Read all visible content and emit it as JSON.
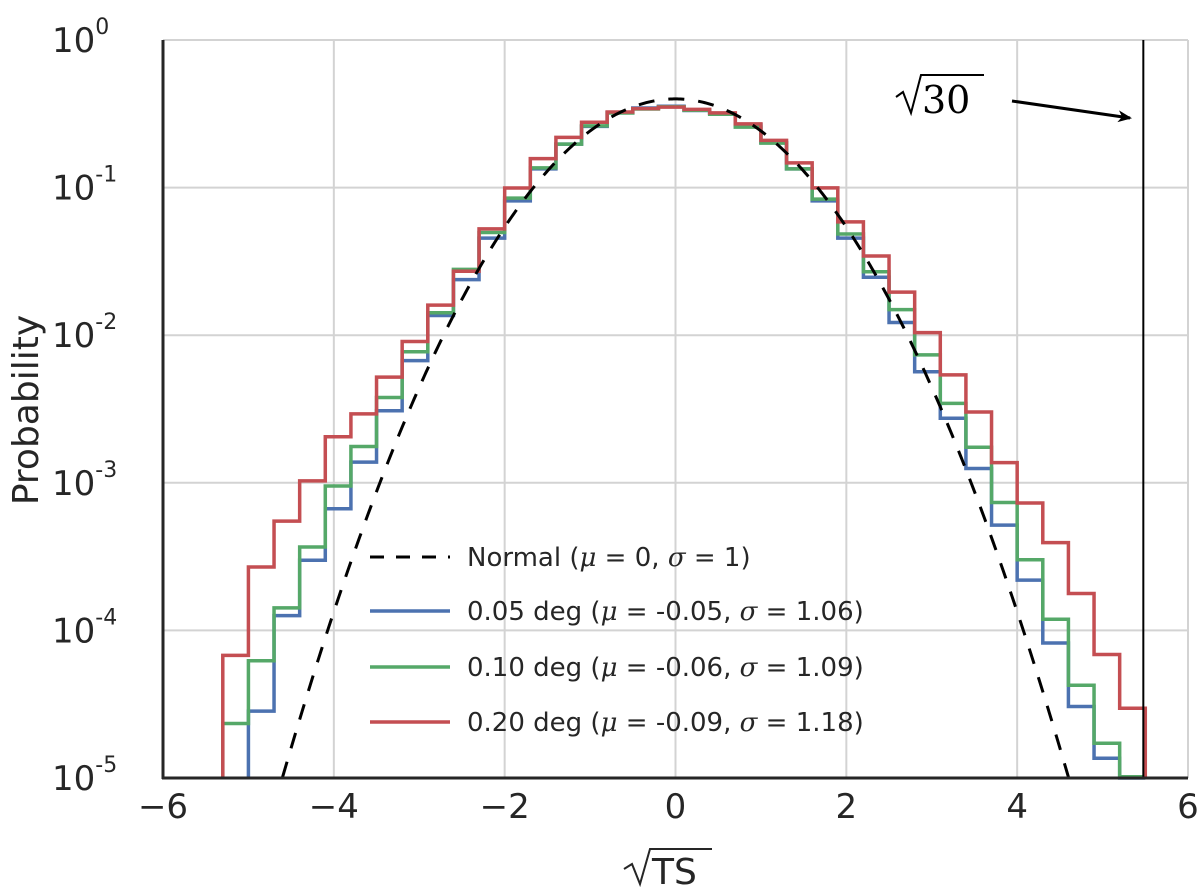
{
  "chart_data": {
    "type": "line",
    "xlabel": "TS",
    "ylabel": "Probability",
    "xlim": [
      -6,
      6
    ],
    "ylim": [
      1e-05,
      1
    ],
    "yscale": "log",
    "grid": true,
    "legend_position": "lower-center",
    "x_ticks": [
      "−6",
      "−4",
      "−2",
      "0",
      "2",
      "4",
      "6"
    ],
    "y_ticks": [
      {
        "base": "10",
        "exp": "0"
      },
      {
        "base": "10",
        "exp": "-1"
      },
      {
        "base": "10",
        "exp": "-2"
      },
      {
        "base": "10",
        "exp": "-3"
      },
      {
        "base": "10",
        "exp": "-4"
      },
      {
        "base": "10",
        "exp": "-5"
      }
    ],
    "bin_edges": [
      -5.3,
      -5.0,
      -4.7,
      -4.4,
      -4.1,
      -3.8,
      -3.5,
      -3.2,
      -2.9,
      -2.6,
      -2.3,
      -2.0,
      -1.7,
      -1.4,
      -1.1,
      -0.8,
      -0.5,
      -0.2,
      0.1,
      0.4,
      0.7,
      1.0,
      1.3,
      1.6,
      1.9,
      2.2,
      2.5,
      2.8,
      3.1,
      3.4,
      3.7,
      4.0,
      4.3,
      4.6,
      4.9,
      5.2,
      5.5
    ],
    "series": [
      {
        "name": "Normal",
        "name_params": [
          "μ",
          "0",
          "σ",
          "1"
        ],
        "style": "dashed",
        "color": "#000000",
        "mu": 0,
        "sigma": 1
      },
      {
        "name": "0.05 deg",
        "name_params": [
          "μ",
          "-0.05",
          "σ",
          "1.06"
        ],
        "style": "step",
        "color": "#4c72b0",
        "values": [
          null,
          2.84e-05,
          0.000126,
          0.000299,
          0.000667,
          0.00138,
          0.00308,
          0.00673,
          0.0136,
          0.0238,
          0.0455,
          0.0813,
          0.134,
          0.197,
          0.26,
          0.323,
          0.346,
          0.356,
          0.333,
          0.319,
          0.266,
          0.202,
          0.134,
          0.0813,
          0.0455,
          0.0247,
          0.0122,
          0.00565,
          0.00274,
          0.00125,
          0.000517,
          0.000219,
          8.22e-05,
          3.05e-05,
          1.36e-05,
          1e-05
        ]
      },
      {
        "name": "0.10 deg",
        "name_params": [
          "μ",
          "-0.06",
          "σ",
          "1.09"
        ],
        "style": "step",
        "color": "#55a868",
        "values": [
          2.34e-05,
          6.23e-05,
          0.000142,
          0.000367,
          0.000952,
          0.00176,
          0.00378,
          0.00773,
          0.0142,
          0.0279,
          0.0496,
          0.0849,
          0.136,
          0.197,
          0.262,
          0.32,
          0.341,
          0.353,
          0.334,
          0.314,
          0.257,
          0.2,
          0.134,
          0.0835,
          0.0485,
          0.0269,
          0.0149,
          0.00735,
          0.00345,
          0.00174,
          0.000735,
          0.000301,
          0.000119,
          4.25e-05,
          1.72e-05,
          1.02e-05
        ]
      },
      {
        "name": "0.20 deg",
        "name_params": [
          "μ",
          "-0.09",
          "σ",
          "1.18"
        ],
        "style": "step",
        "color": "#c44e52",
        "values": [
          6.77e-05,
          0.000269,
          0.00055,
          0.00103,
          0.00205,
          0.00293,
          0.0052,
          0.00907,
          0.016,
          0.0271,
          0.0525,
          0.0994,
          0.157,
          0.219,
          0.277,
          0.325,
          0.343,
          0.351,
          0.339,
          0.321,
          0.27,
          0.209,
          0.147,
          0.0995,
          0.0586,
          0.0344,
          0.0196,
          0.0104,
          0.00539,
          0.00302,
          0.00137,
          0.000729,
          0.000393,
          0.000178,
          6.87e-05,
          2.97e-05
        ]
      }
    ],
    "annotations": [
      {
        "text": "30",
        "type": "vertical-line",
        "x": 5.477
      }
    ]
  }
}
